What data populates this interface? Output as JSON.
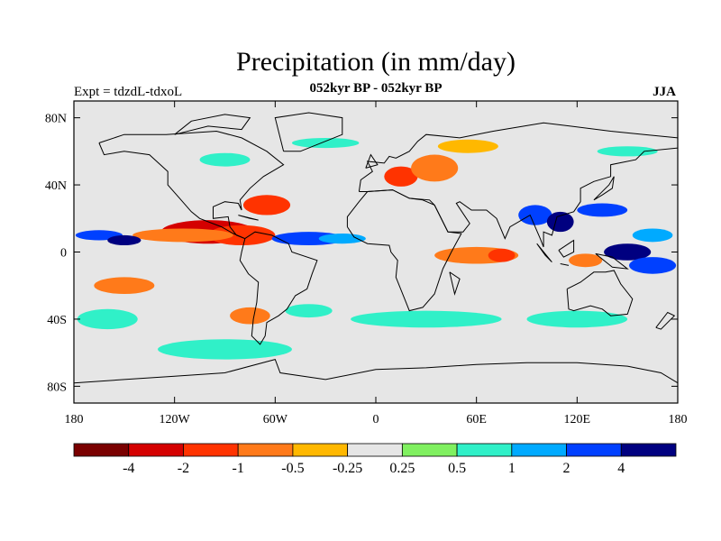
{
  "title": "Precipitation (in mm/day)",
  "subtitle": "052kyr BP - 052kyr BP",
  "left_header": "Expt = tdzdL-tdxoL",
  "right_header": "JJA",
  "colors": {
    "land_bg": "#e6e6e6",
    "coast": "#000000"
  },
  "chart_data": {
    "type": "heatmap",
    "projection": "cylindrical-equidistant",
    "xlim": [
      -180,
      180
    ],
    "ylim": [
      -90,
      90
    ],
    "x_ticks": [
      {
        "value": -180,
        "label": "180"
      },
      {
        "value": -120,
        "label": "120W"
      },
      {
        "value": -60,
        "label": "60W"
      },
      {
        "value": 0,
        "label": "0"
      },
      {
        "value": 60,
        "label": "60E"
      },
      {
        "value": 120,
        "label": "120E"
      },
      {
        "value": 180,
        "label": "180"
      }
    ],
    "y_ticks": [
      {
        "value": 80,
        "label": "80N"
      },
      {
        "value": 40,
        "label": "40N"
      },
      {
        "value": 0,
        "label": "0"
      },
      {
        "value": -40,
        "label": "40S"
      },
      {
        "value": -80,
        "label": "80S"
      }
    ],
    "colorbar": {
      "levels": [
        "-4",
        "-2",
        "-1",
        "-0.5",
        "-0.25",
        "0.25",
        "0.5",
        "1",
        "2",
        "4"
      ],
      "colors": [
        "#7a0000",
        "#d40000",
        "#ff3300",
        "#ff7a1a",
        "#ffb800",
        "#e6e6e6",
        "#80f060",
        "#30f0c8",
        "#00aaff",
        "#0040ff",
        "#000080"
      ]
    },
    "regions": [
      {
        "lon": -100,
        "lat": 12,
        "rx": 28,
        "ry": 7,
        "level": -4
      },
      {
        "lon": -80,
        "lat": 10,
        "rx": 20,
        "ry": 6,
        "level": -2
      },
      {
        "lon": -115,
        "lat": 10,
        "rx": 30,
        "ry": 4,
        "level": -1
      },
      {
        "lon": -65,
        "lat": 28,
        "rx": 14,
        "ry": 6,
        "level": -2
      },
      {
        "lon": -165,
        "lat": 10,
        "rx": 14,
        "ry": 3,
        "level": 2
      },
      {
        "lon": -150,
        "lat": 7,
        "rx": 10,
        "ry": 3,
        "level": 4
      },
      {
        "lon": -40,
        "lat": 8,
        "rx": 22,
        "ry": 4,
        "level": 2
      },
      {
        "lon": -20,
        "lat": 8,
        "rx": 14,
        "ry": 3,
        "level": 1
      },
      {
        "lon": 15,
        "lat": 45,
        "rx": 10,
        "ry": 6,
        "level": -2
      },
      {
        "lon": 35,
        "lat": 50,
        "rx": 14,
        "ry": 8,
        "level": -1
      },
      {
        "lon": 55,
        "lat": 63,
        "rx": 18,
        "ry": 4,
        "level": -0.5
      },
      {
        "lon": 60,
        "lat": -2,
        "rx": 25,
        "ry": 5,
        "level": -1
      },
      {
        "lon": 75,
        "lat": -2,
        "rx": 8,
        "ry": 4,
        "level": -2
      },
      {
        "lon": 95,
        "lat": 22,
        "rx": 10,
        "ry": 6,
        "level": 2
      },
      {
        "lon": 110,
        "lat": 18,
        "rx": 8,
        "ry": 6,
        "level": 4
      },
      {
        "lon": 135,
        "lat": 25,
        "rx": 15,
        "ry": 4,
        "level": 2
      },
      {
        "lon": 165,
        "lat": 10,
        "rx": 12,
        "ry": 4,
        "level": 1
      },
      {
        "lon": 150,
        "lat": 0,
        "rx": 14,
        "ry": 5,
        "level": 4
      },
      {
        "lon": 125,
        "lat": -5,
        "rx": 10,
        "ry": 4,
        "level": -1
      },
      {
        "lon": 165,
        "lat": -8,
        "rx": 14,
        "ry": 5,
        "level": 2
      },
      {
        "lon": -150,
        "lat": -20,
        "rx": 18,
        "ry": 5,
        "level": -1
      },
      {
        "lon": -75,
        "lat": -38,
        "rx": 12,
        "ry": 5,
        "level": -1
      },
      {
        "lon": -40,
        "lat": -35,
        "rx": 14,
        "ry": 4,
        "level": 0.5
      },
      {
        "lon": 30,
        "lat": -40,
        "rx": 45,
        "ry": 5,
        "level": 0.5
      },
      {
        "lon": 120,
        "lat": -40,
        "rx": 30,
        "ry": 5,
        "level": 0.5
      },
      {
        "lon": -90,
        "lat": -58,
        "rx": 40,
        "ry": 6,
        "level": 0.5
      },
      {
        "lon": -160,
        "lat": -40,
        "rx": 18,
        "ry": 6,
        "level": 0.5
      },
      {
        "lon": -30,
        "lat": 65,
        "rx": 20,
        "ry": 3,
        "level": 0.5
      },
      {
        "lon": -90,
        "lat": 55,
        "rx": 15,
        "ry": 4,
        "level": 0.5
      },
      {
        "lon": 150,
        "lat": 60,
        "rx": 18,
        "ry": 3,
        "level": 0.5
      }
    ]
  }
}
